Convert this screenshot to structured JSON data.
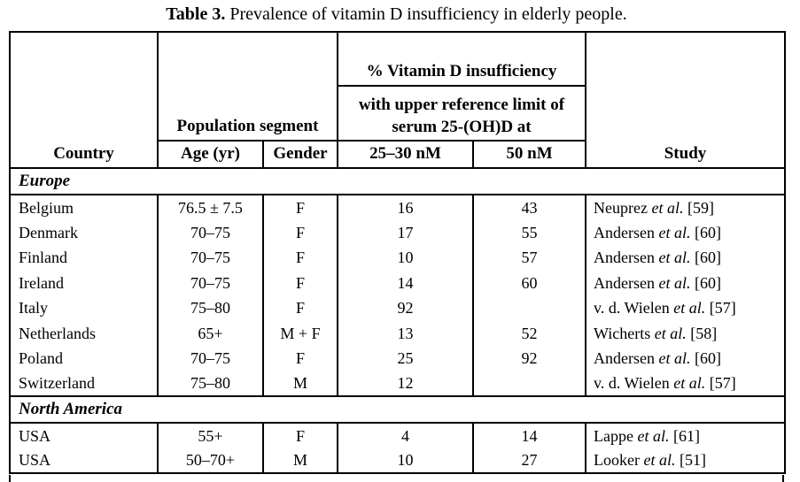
{
  "caption": {
    "label": "Table 3.",
    "text": " Prevalence of vitamin D insufficiency in elderly people."
  },
  "table": {
    "header": {
      "country": "Country",
      "population_segment": "Population segment",
      "age": "Age (yr)",
      "gender": "Gender",
      "vitd_line1": "% Vitamin D insufficiency",
      "vitd_line2": "with upper reference limit of",
      "vitd_line3": "serum 25-(OH)D at",
      "limit_low": "25–30 nM",
      "limit_high": "50 nM",
      "study": "Study"
    },
    "sections": [
      {
        "name": "Europe",
        "rows": [
          {
            "country": "Belgium",
            "age": "76.5 ± 7.5",
            "gender": "F",
            "pct_low": "16",
            "pct_high": "43",
            "study": {
              "author": "Neuprez",
              "etal": "et al.",
              "ref": "[59]"
            }
          },
          {
            "country": "Denmark",
            "age": "70–75",
            "gender": "F",
            "pct_low": "17",
            "pct_high": "55",
            "study": {
              "author": "Andersen",
              "etal": "et al.",
              "ref": "[60]"
            }
          },
          {
            "country": "Finland",
            "age": "70–75",
            "gender": "F",
            "pct_low": "10",
            "pct_high": "57",
            "study": {
              "author": "Andersen",
              "etal": "et al.",
              "ref": "[60]"
            }
          },
          {
            "country": "Ireland",
            "age": "70–75",
            "gender": "F",
            "pct_low": "14",
            "pct_high": "60",
            "study": {
              "author": "Andersen",
              "etal": "et al.",
              "ref": "[60]"
            }
          },
          {
            "country": "Italy",
            "age": "75–80",
            "gender": "F",
            "pct_low": "92",
            "pct_high": "",
            "study": {
              "author": "v. d. Wielen",
              "etal": "et al.",
              "ref": "[57]"
            }
          },
          {
            "country": "Netherlands",
            "age": "65+",
            "gender": "M + F",
            "pct_low": "13",
            "pct_high": "52",
            "study": {
              "author": "Wicherts",
              "etal": "et al.",
              "ref": "[58]"
            }
          },
          {
            "country": "Poland",
            "age": "70–75",
            "gender": "F",
            "pct_low": "25",
            "pct_high": "92",
            "study": {
              "author": "Andersen",
              "etal": "et al.",
              "ref": "[60]"
            }
          },
          {
            "country": "Switzerland",
            "age": "75–80",
            "gender": "M",
            "pct_low": "12",
            "pct_high": "",
            "study": {
              "author": "v. d. Wielen",
              "etal": "et al.",
              "ref": "[57]"
            }
          }
        ]
      },
      {
        "name": "North America",
        "rows": [
          {
            "country": "USA",
            "age": "55+",
            "gender": "F",
            "pct_low": "4",
            "pct_high": "14",
            "study": {
              "author": "Lappe",
              "etal": "et al.",
              "ref": "[61]"
            }
          },
          {
            "country": "USA",
            "age": "50–70+",
            "gender": "M",
            "pct_low": "10",
            "pct_high": "27",
            "study": {
              "author": "Looker",
              "etal": "et al.",
              "ref": "[51]"
            }
          }
        ]
      }
    ]
  }
}
